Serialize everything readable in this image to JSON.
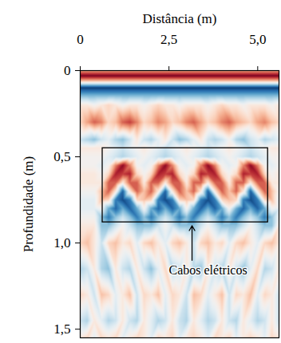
{
  "chart_data": {
    "type": "heatmap",
    "xlabel": "Distância (m)",
    "ylabel": "Profundidade (m)",
    "xlim": [
      0,
      5.6
    ],
    "ylim": [
      0,
      1.55
    ],
    "xticks": [
      0,
      {
        "value": 2.5,
        "label": "2,5"
      },
      {
        "value": 5,
        "label": "5,0"
      }
    ],
    "yticks": [
      0,
      {
        "value": 0.5,
        "label": "0,5"
      },
      {
        "value": 1,
        "label": "1,0"
      },
      {
        "value": 1.5,
        "label": "1,5"
      }
    ],
    "value_range": [
      -1,
      1
    ],
    "x": [
      0,
      0.2,
      0.4,
      0.6,
      0.8,
      1,
      1.2,
      1.4,
      1.6,
      1.8,
      2,
      2.2,
      2.4,
      2.6,
      2.8,
      3,
      3.2,
      3.4,
      3.6,
      3.8,
      4,
      4.2,
      4.4,
      4.6,
      4.8,
      5,
      5.2,
      5.4,
      5.6
    ],
    "y": [
      0,
      0.03,
      0.06,
      0.1,
      0.14,
      0.2,
      0.3,
      0.4,
      0.45,
      0.5,
      0.55,
      0.6,
      0.65,
      0.7,
      0.75,
      0.8,
      0.85,
      0.9,
      1,
      1.15,
      1.3,
      1.45,
      1.55
    ],
    "values": [
      [
        0.4,
        0.4,
        0.4,
        0.4,
        0.4,
        0.4,
        0.4,
        0.4,
        0.4,
        0.4,
        0.4,
        0.4,
        0.4,
        0.4,
        0.4,
        0.4,
        0.4,
        0.4,
        0.4,
        0.4,
        0.4,
        0.4,
        0.4,
        0.4,
        0.4,
        0.4,
        0.4,
        0.4,
        0.4
      ],
      [
        0.95,
        0.95,
        0.95,
        0.95,
        0.95,
        0.95,
        0.95,
        0.95,
        0.95,
        0.95,
        0.95,
        0.95,
        0.95,
        0.95,
        0.95,
        0.95,
        0.95,
        0.95,
        0.95,
        0.95,
        0.95,
        0.95,
        0.95,
        0.95,
        0.95,
        0.95,
        0.95,
        0.95,
        0.95
      ],
      [
        0.3,
        0.3,
        0.3,
        0.3,
        0.3,
        0.3,
        0.3,
        0.3,
        0.3,
        0.3,
        0.3,
        0.3,
        0.3,
        0.3,
        0.3,
        0.3,
        0.3,
        0.3,
        0.3,
        0.3,
        0.3,
        0.3,
        0.3,
        0.3,
        0.3,
        0.3,
        0.3,
        0.3,
        0.3
      ],
      [
        -0.95,
        -0.95,
        -0.95,
        -0.95,
        -0.95,
        -0.95,
        -0.95,
        -0.95,
        -0.95,
        -0.95,
        -0.95,
        -0.95,
        -0.95,
        -0.95,
        -0.95,
        -0.95,
        -0.95,
        -0.95,
        -0.95,
        -0.95,
        -0.95,
        -0.95,
        -0.95,
        -0.95,
        -0.95,
        -0.95,
        -0.95,
        -0.95,
        -0.95
      ],
      [
        -0.5,
        -0.5,
        -0.5,
        -0.5,
        -0.5,
        -0.5,
        -0.5,
        -0.5,
        -0.5,
        -0.5,
        -0.5,
        -0.5,
        -0.5,
        -0.5,
        -0.5,
        -0.5,
        -0.5,
        -0.5,
        -0.5,
        -0.5,
        -0.5,
        -0.5,
        -0.5,
        -0.5,
        -0.5,
        -0.5,
        -0.5,
        -0.5,
        -0.5
      ],
      [
        0.1,
        0.1,
        0,
        0.1,
        0.2,
        0.1,
        0,
        0.1,
        0.1,
        0,
        0.1,
        0.2,
        0.1,
        0.1,
        0,
        0.1,
        0.1,
        0.1,
        0,
        0.1,
        0.2,
        0.1,
        0.1,
        0,
        0.1,
        0.1,
        0.1,
        0,
        0.1
      ],
      [
        0.2,
        0.4,
        0.6,
        0.5,
        0.2,
        0.3,
        0.6,
        0.7,
        0.5,
        0.2,
        0.3,
        0.5,
        0.4,
        0.2,
        0.3,
        0.5,
        0.6,
        0.4,
        0.2,
        0.3,
        0.5,
        0.6,
        0.4,
        0.3,
        0.2,
        0.4,
        0.5,
        0.3,
        0.2
      ],
      [
        -0.2,
        -0.3,
        -0.4,
        -0.2,
        -0.1,
        -0.3,
        -0.4,
        -0.2,
        0.1,
        -0.2,
        -0.3,
        -0.1,
        0.1,
        -0.2,
        -0.4,
        -0.3,
        -0.1,
        0.1,
        -0.2,
        -0.3,
        -0.2,
        0,
        -0.3,
        -0.4,
        -0.2,
        -0.1,
        -0.3,
        -0.2,
        -0.1
      ],
      [
        0.1,
        0.1,
        0.1,
        0.1,
        0,
        -0.1,
        -0.2,
        -0.1,
        0,
        0.1,
        0,
        -0.1,
        -0.2,
        -0.1,
        0,
        0.1,
        0,
        -0.1,
        -0.2,
        -0.1,
        0,
        0.1,
        0,
        -0.1,
        -0.2,
        -0.1,
        0,
        0.1,
        0.1
      ],
      [
        0,
        0,
        0,
        0,
        -0.1,
        -0.2,
        -0.3,
        -0.2,
        -0.1,
        0,
        -0.1,
        -0.2,
        -0.3,
        -0.2,
        -0.1,
        0,
        -0.1,
        -0.2,
        -0.3,
        -0.2,
        -0.1,
        0,
        -0.1,
        -0.2,
        -0.3,
        -0.2,
        -0.1,
        0,
        0
      ],
      [
        0,
        0,
        0,
        -0.1,
        0,
        0.5,
        0.9,
        0.5,
        0,
        -0.1,
        0,
        0.5,
        0.9,
        0.5,
        0,
        -0.1,
        0,
        0.5,
        0.9,
        0.5,
        0,
        -0.1,
        0,
        0.5,
        0.9,
        0.5,
        0,
        -0.1,
        0
      ],
      [
        0.1,
        0.1,
        0.1,
        0,
        0.2,
        0.8,
        0.7,
        0.8,
        0.2,
        0,
        0.2,
        0.8,
        0.7,
        0.8,
        0.2,
        0,
        0.2,
        0.8,
        0.7,
        0.8,
        0.2,
        0,
        0.2,
        0.8,
        0.7,
        0.8,
        0.2,
        0,
        0.1
      ],
      [
        0.1,
        0.1,
        0.1,
        0.1,
        0.6,
        0.6,
        0.1,
        0.6,
        0.6,
        0.1,
        0.6,
        0.6,
        0.1,
        0.6,
        0.6,
        0.1,
        0.6,
        0.6,
        0.1,
        0.6,
        0.6,
        0.1,
        0.6,
        0.6,
        0.1,
        0.6,
        0.6,
        0.1,
        0.1
      ],
      [
        0,
        0,
        0,
        0.3,
        0.6,
        0.1,
        -0.8,
        0.1,
        0.6,
        0.3,
        0.6,
        0.1,
        -0.8,
        0.1,
        0.6,
        0.3,
        0.6,
        0.1,
        -0.8,
        0.1,
        0.6,
        0.3,
        0.6,
        0.1,
        -0.8,
        0.1,
        0.6,
        0.3,
        0
      ],
      [
        -0.1,
        -0.1,
        -0.1,
        0.3,
        0.2,
        -0.7,
        -0.9,
        -0.7,
        0.2,
        0.3,
        0.2,
        -0.7,
        -0.9,
        -0.7,
        0.2,
        0.3,
        0.2,
        -0.7,
        -0.9,
        -0.7,
        0.2,
        0.3,
        0.2,
        -0.7,
        -0.9,
        -0.7,
        0.2,
        0.3,
        -0.1
      ],
      [
        -0.1,
        -0.1,
        -0.1,
        0,
        -0.5,
        -0.8,
        -0.5,
        -0.8,
        -0.5,
        0,
        -0.5,
        -0.8,
        -0.5,
        -0.8,
        -0.5,
        0,
        -0.5,
        -0.8,
        -0.5,
        -0.8,
        -0.5,
        0,
        -0.5,
        -0.8,
        -0.5,
        -0.8,
        -0.5,
        0,
        -0.1
      ],
      [
        0,
        0,
        0,
        -0.4,
        -0.7,
        -0.4,
        -0.2,
        -0.4,
        -0.7,
        -0.4,
        -0.7,
        -0.4,
        -0.2,
        -0.4,
        -0.7,
        -0.4,
        -0.7,
        -0.4,
        -0.2,
        -0.4,
        -0.7,
        -0.4,
        -0.7,
        -0.4,
        -0.2,
        -0.4,
        -0.7,
        -0.4,
        0
      ],
      [
        0.1,
        0.1,
        0.1,
        -0.4,
        -0.4,
        -0.2,
        0,
        -0.2,
        -0.4,
        -0.4,
        -0.4,
        -0.2,
        0,
        -0.2,
        -0.4,
        -0.4,
        -0.4,
        -0.2,
        0,
        -0.2,
        -0.4,
        -0.4,
        -0.4,
        -0.2,
        0,
        -0.2,
        -0.4,
        -0.4,
        0.1
      ],
      [
        0.2,
        0.3,
        0.1,
        -0.2,
        0.2,
        0.3,
        0.1,
        0.2,
        -0.1,
        0.2,
        0.3,
        0.1,
        -0.1,
        0.2,
        0.3,
        0.1,
        -0.2,
        0.2,
        0.3,
        0.1,
        0.2,
        -0.1,
        0.2,
        0.3,
        0.1,
        -0.1,
        0.2,
        0.3,
        0.1
      ],
      [
        -0.3,
        -0.2,
        0.1,
        -0.3,
        -0.4,
        0.1,
        -0.2,
        -0.3,
        0.1,
        -0.2,
        -0.4,
        -0.1,
        0.2,
        -0.3,
        -0.2,
        0.1,
        -0.3,
        -0.4,
        0.1,
        -0.2,
        -0.3,
        0.1,
        -0.2,
        -0.4,
        -0.1,
        0.2,
        -0.3,
        -0.2,
        0.1
      ],
      [
        0.2,
        0.1,
        -0.2,
        0.3,
        0.2,
        -0.1,
        0.1,
        0.3,
        -0.2,
        0.2,
        0.1,
        0.3,
        -0.1,
        0.2,
        0.1,
        -0.2,
        0.3,
        0.2,
        -0.1,
        0.1,
        0.3,
        -0.2,
        0.2,
        0.1,
        0.3,
        -0.1,
        0.2,
        0.1,
        -0.2
      ],
      [
        -0.2,
        -0.3,
        0.1,
        -0.1,
        -0.3,
        -0.2,
        0.1,
        -0.2,
        -0.3,
        0.1,
        -0.1,
        -0.3,
        -0.2,
        0.1,
        -0.2,
        -0.3,
        0.1,
        -0.1,
        -0.3,
        -0.2,
        0.1,
        -0.2,
        -0.3,
        0.1,
        -0.1,
        -0.3,
        -0.2,
        0.1,
        -0.2
      ],
      [
        0.1,
        0.2,
        -0.1,
        0.2,
        0.1,
        0.2,
        -0.1,
        0.1,
        0.2,
        0.1,
        -0.1,
        0.2,
        0.1,
        0.2,
        -0.1,
        0.1,
        0.2,
        0.1,
        -0.1,
        0.2,
        0.1,
        0.2,
        -0.1,
        0.1,
        0.2,
        0.1,
        -0.1,
        0.2,
        0.1
      ]
    ],
    "annotations": [
      {
        "type": "box",
        "x": [
          0.63,
          5.29
        ],
        "y": [
          0.45,
          0.88
        ]
      },
      {
        "type": "arrow",
        "text": "Cabos elétricos",
        "x": 3.15,
        "y": [
          1.1,
          0.9
        ],
        "text_x": 3.6,
        "text_y": 1.16
      }
    ]
  }
}
